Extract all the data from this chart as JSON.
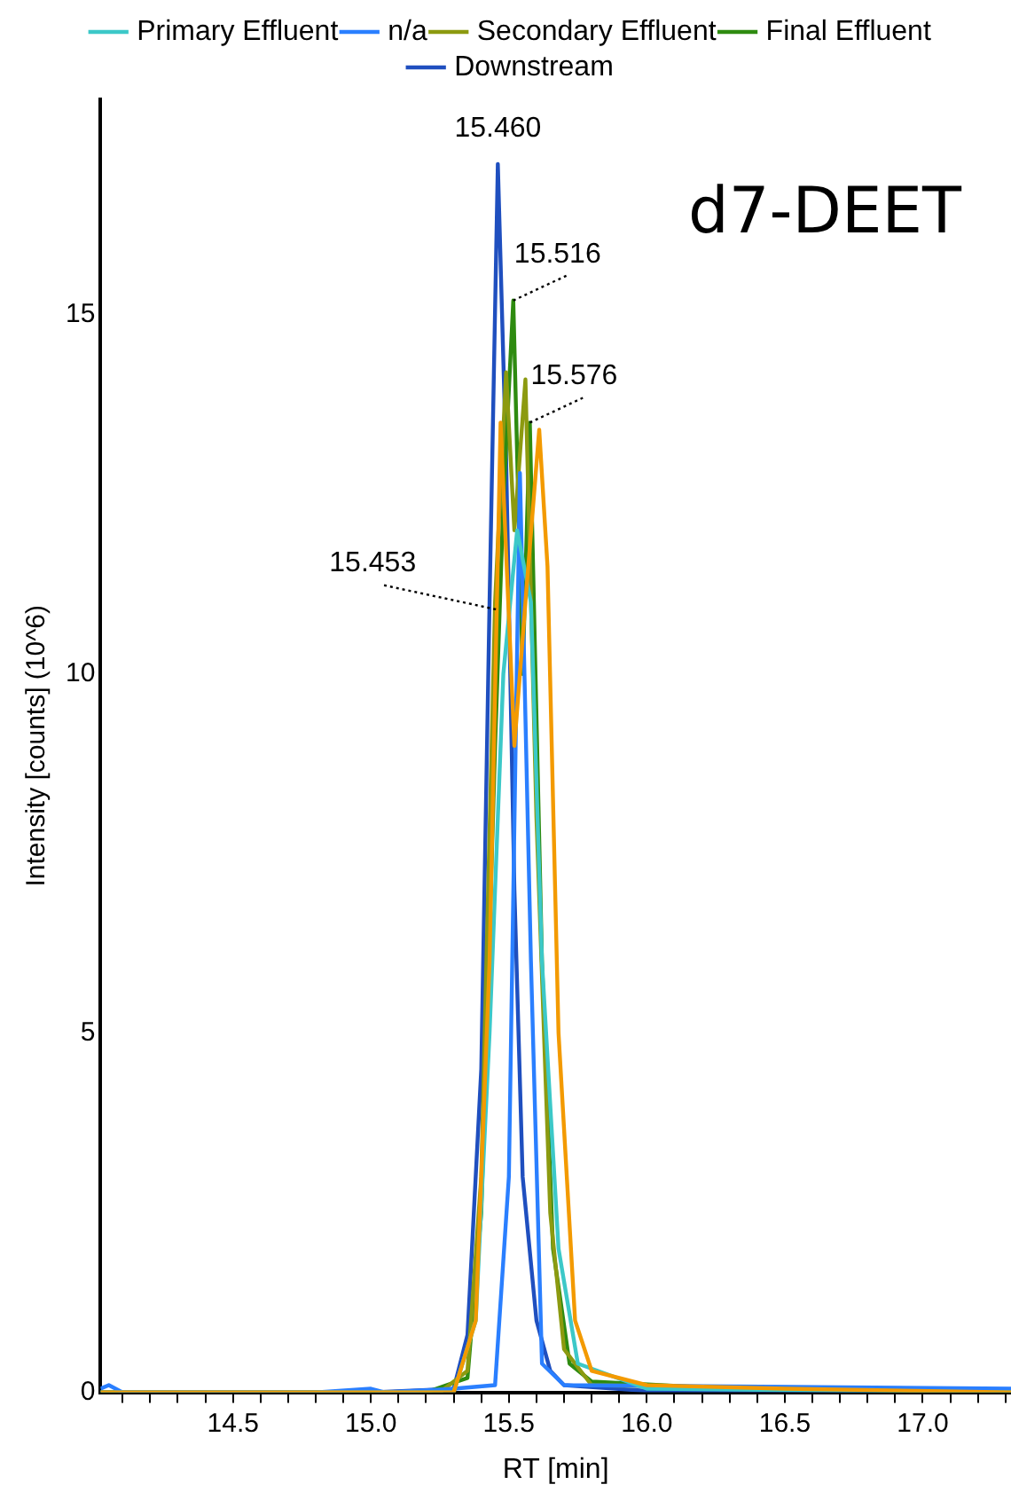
{
  "chart_data": {
    "type": "line",
    "title": "d7-DEET",
    "xlabel": "RT [min]",
    "ylabel": "Intensity [counts] (10^6)",
    "xlim": [
      14.02,
      17.32
    ],
    "xticks": [
      {
        "value": 14.1,
        "label": null
      },
      {
        "value": 14.2,
        "label": null
      },
      {
        "value": 14.3,
        "label": null
      },
      {
        "value": 14.4,
        "label": null
      },
      {
        "value": 14.5,
        "label": "14.5"
      },
      {
        "value": 14.6,
        "label": null
      },
      {
        "value": 14.7,
        "label": null
      },
      {
        "value": 14.8,
        "label": null
      },
      {
        "value": 14.9,
        "label": null
      },
      {
        "value": 15.0,
        "label": "15.0"
      },
      {
        "value": 15.1,
        "label": null
      },
      {
        "value": 15.2,
        "label": null
      },
      {
        "value": 15.3,
        "label": null
      },
      {
        "value": 15.4,
        "label": null
      },
      {
        "value": 15.5,
        "label": "15.5"
      },
      {
        "value": 15.6,
        "label": null
      },
      {
        "value": 15.7,
        "label": null
      },
      {
        "value": 15.8,
        "label": null
      },
      {
        "value": 15.9,
        "label": null
      },
      {
        "value": 16.0,
        "label": "16.0"
      },
      {
        "value": 16.1,
        "label": null
      },
      {
        "value": 16.2,
        "label": null
      },
      {
        "value": 16.3,
        "label": null
      },
      {
        "value": 16.4,
        "label": null
      },
      {
        "value": 16.5,
        "label": "16.5"
      },
      {
        "value": 16.6,
        "label": null
      },
      {
        "value": 16.7,
        "label": null
      },
      {
        "value": 16.8,
        "label": null
      },
      {
        "value": 16.9,
        "label": null
      },
      {
        "value": 17.0,
        "label": "17.0"
      },
      {
        "value": 17.1,
        "label": null
      },
      {
        "value": 17.2,
        "label": null
      },
      {
        "value": 17.3,
        "label": null
      }
    ],
    "ylim": [
      0,
      18
    ],
    "yticks": [
      0,
      5,
      10,
      15
    ],
    "grid": false,
    "legend": "top",
    "marker": "none",
    "line_style": "solid",
    "series": [
      {
        "color": "#f39a00",
        "x": [
          14.02,
          15.3,
          15.38,
          15.43,
          15.47,
          15.52,
          15.56,
          15.61,
          15.64,
          15.68,
          15.74,
          15.8,
          16.0,
          16.5,
          17.32
        ],
        "values": [
          0,
          0,
          1,
          6,
          13.5,
          9,
          11,
          13.4,
          11.5,
          5,
          1,
          0.3,
          0.1,
          0.05,
          0
        ]
      },
      {
        "name": "Primary Effluent",
        "color": "#3cc8c8",
        "x": [
          14.02,
          15.3,
          15.38,
          15.43,
          15.48,
          15.53,
          15.58,
          15.62,
          15.68,
          15.75,
          16.0,
          17.32
        ],
        "values": [
          0,
          0,
          1,
          5,
          10,
          12,
          11,
          6,
          2,
          0.4,
          0.05,
          0
        ]
      },
      {
        "name": "n/a",
        "color": "#2a7fff",
        "x": [
          14.02,
          14.05,
          14.1,
          14.8,
          15.0,
          15.05,
          15.3,
          15.45,
          15.5,
          15.54,
          15.58,
          15.62,
          15.7,
          17.32
        ],
        "values": [
          0.05,
          0.1,
          0,
          0,
          0.05,
          0,
          0.05,
          0.1,
          3,
          12.8,
          6,
          0.4,
          0.1,
          0.05
        ]
      },
      {
        "name": "Secondary Effluent",
        "color": "#8c9a10",
        "x": [
          14.02,
          15.25,
          15.35,
          15.4,
          15.45,
          15.49,
          15.52,
          15.56,
          15.6,
          15.65,
          15.7,
          15.8,
          17.32
        ],
        "values": [
          0,
          0,
          0.3,
          3,
          11,
          14.2,
          12,
          14.1,
          8,
          2.5,
          0.6,
          0.1,
          0
        ]
      },
      {
        "name": "Final Effluent",
        "color": "#2e8b10",
        "x": [
          14.02,
          15.2,
          15.35,
          15.4,
          15.45,
          15.48,
          15.516,
          15.55,
          15.576,
          15.62,
          15.66,
          15.72,
          15.8,
          16.3,
          16.8,
          17.32
        ],
        "values": [
          0,
          0,
          0.2,
          2.5,
          9,
          12.4,
          15.2,
          10,
          13.5,
          6,
          2,
          0.4,
          0.15,
          0.05,
          0.03,
          0
        ]
      },
      {
        "name": "Downstream",
        "color": "#1f4fbf",
        "x": [
          14.02,
          15.0,
          15.3,
          15.35,
          15.4,
          15.43,
          15.46,
          15.49,
          15.52,
          15.55,
          15.6,
          15.65,
          15.7,
          16.0,
          17.32
        ],
        "values": [
          0,
          0,
          0.05,
          0.8,
          4.5,
          11,
          17.1,
          13,
          7,
          3,
          1,
          0.3,
          0.1,
          0.02,
          0
        ]
      }
    ],
    "annotations": [
      {
        "text": "15.460",
        "x": 15.46,
        "y": 17.1
      },
      {
        "text": "15.516",
        "x": 15.516,
        "y": 15.2
      },
      {
        "text": "15.576",
        "x": 15.576,
        "y": 13.5
      },
      {
        "text": "15.453",
        "x": 15.453,
        "y": 10.9
      }
    ]
  }
}
